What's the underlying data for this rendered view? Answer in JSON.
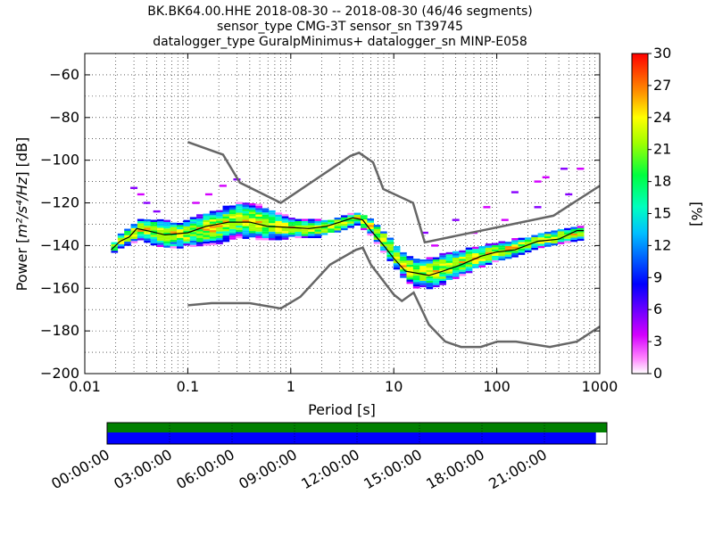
{
  "chart_data": {
    "type": "heatmap",
    "title_lines": [
      "BK.BK64.00.HHE   2018-08-30 -- 2018-08-30  (46/46 segments)",
      "sensor_type CMG-3T sensor_sn T39745",
      "datalogger_type GuralpMinimus+ datalogger_sn MINP-E058"
    ],
    "xlabel": "Period [s]",
    "ylabel_prefix": "Power [",
    "ylabel_math": "m²/s⁴/Hz",
    "ylabel_suffix": "] [dB]",
    "x_scale": "log",
    "xlim": [
      0.01,
      1000
    ],
    "ylim": [
      -200,
      -50
    ],
    "x_ticks": [
      {
        "value": 0.01,
        "label": "0.01"
      },
      {
        "value": 0.1,
        "label": "0.1"
      },
      {
        "value": 1,
        "label": "1"
      },
      {
        "value": 10,
        "label": "10"
      },
      {
        "value": 100,
        "label": "100"
      },
      {
        "value": 1000,
        "label": "1000"
      }
    ],
    "y_ticks": [
      {
        "value": -60,
        "label": "−60"
      },
      {
        "value": -80,
        "label": "−80"
      },
      {
        "value": -100,
        "label": "−100"
      },
      {
        "value": -120,
        "label": "−120"
      },
      {
        "value": -140,
        "label": "−140"
      },
      {
        "value": -160,
        "label": "−160"
      },
      {
        "value": -180,
        "label": "−180"
      },
      {
        "value": -200,
        "label": "−200"
      }
    ],
    "grid": true,
    "colorbar": {
      "label": "[%]",
      "range": [
        0,
        30
      ],
      "ticks": [
        {
          "value": 0,
          "label": "0"
        },
        {
          "value": 3,
          "label": "3"
        },
        {
          "value": 6,
          "label": "6"
        },
        {
          "value": 9,
          "label": "9"
        },
        {
          "value": 12,
          "label": "12"
        },
        {
          "value": 15,
          "label": "15"
        },
        {
          "value": 18,
          "label": "18"
        },
        {
          "value": 21,
          "label": "21"
        },
        {
          "value": 24,
          "label": "24"
        },
        {
          "value": 27,
          "label": "27"
        },
        {
          "value": 30,
          "label": "30"
        }
      ]
    },
    "nhnm": {
      "x": [
        0.1,
        0.17,
        0.4,
        0.8,
        1.24,
        2.4,
        4.3,
        5.0,
        6.0,
        10,
        12,
        15.6,
        21.9,
        31.6,
        45,
        70,
        101,
        154,
        328,
        600,
        1000
      ],
      "y": [
        -168,
        -167,
        -167,
        -169.5,
        -164,
        -149,
        -142,
        -141,
        -149,
        -163,
        -166,
        -162,
        -177,
        -185,
        -187.5,
        -187.5,
        -185,
        -185,
        -187.5,
        -185,
        -178
      ]
    },
    "nlnm": {
      "x": [
        0.1,
        0.22,
        0.32,
        0.8,
        3.8,
        4.6,
        6.3,
        7.9,
        15.4,
        20,
        354.8,
        1000
      ],
      "y": [
        -91.5,
        -97.4,
        -110.5,
        -120,
        -98,
        -96.5,
        -101,
        -113.5,
        -120,
        -138.5,
        -126,
        -112
      ]
    },
    "mode_line": {
      "x": [
        0.018,
        0.022,
        0.027,
        0.032,
        0.04,
        0.06,
        0.1,
        0.15,
        0.25,
        0.4,
        0.6,
        1.0,
        1.5,
        2.2,
        3.0,
        4.0,
        5.0,
        6.0,
        8.0,
        10,
        13,
        17,
        22,
        30,
        45,
        70,
        100,
        150,
        250,
        400,
        600,
        700
      ],
      "y": [
        -142,
        -138,
        -136,
        -132,
        -133,
        -135,
        -134,
        -131,
        -129,
        -129,
        -131,
        -131.5,
        -132,
        -131,
        -129,
        -127,
        -128,
        -133,
        -140,
        -146,
        -152,
        -153,
        -154,
        -152,
        -149,
        -145,
        -143,
        -142,
        -138,
        -137,
        -133,
        -133
      ]
    },
    "density_band": {
      "x": [
        0.018,
        0.022,
        0.028,
        0.035,
        0.05,
        0.08,
        0.12,
        0.2,
        0.3,
        0.5,
        0.8,
        1.2,
        2.0,
        3.0,
        4.5,
        6.0,
        8.0,
        10,
        13,
        17,
        22,
        30,
        45,
        70,
        100,
        150,
        250,
        400,
        700
      ],
      "center": [
        -142,
        -138,
        -135,
        -132,
        -134,
        -135,
        -133,
        -131,
        -128,
        -129,
        -131,
        -132,
        -132,
        -130,
        -127,
        -131,
        -138,
        -144,
        -150,
        -153,
        -153,
        -151,
        -148,
        -145,
        -143,
        -141,
        -138,
        -136,
        -134
      ],
      "half_width": [
        2,
        3,
        4,
        5,
        6,
        6,
        7,
        8,
        8,
        8,
        6,
        4,
        4,
        3,
        3,
        4,
        5,
        5,
        6,
        7,
        7,
        7,
        6,
        5,
        4,
        4,
        3,
        3,
        3
      ]
    },
    "scattered_segments": [
      {
        "x": [
          0.03,
          0.035,
          0.04,
          0.05
        ],
        "y": [
          -113,
          -116,
          -120,
          -124
        ]
      },
      {
        "x": [
          0.12,
          0.16,
          0.22,
          0.3
        ],
        "y": [
          -120,
          -116,
          -112,
          -109
        ]
      },
      {
        "x": [
          20,
          40,
          80,
          150,
          250
        ],
        "y": [
          -134,
          -128,
          -122,
          -115,
          -110
        ]
      },
      {
        "x": [
          25,
          60,
          120,
          250,
          500
        ],
        "y": [
          -140,
          -134,
          -128,
          -122,
          -116
        ]
      },
      {
        "x": [
          300,
          450,
          650
        ],
        "y": [
          -108,
          -104,
          -104
        ]
      }
    ]
  },
  "timeline": {
    "tick_labels": [
      "00:00:00",
      "03:00:00",
      "06:00:00",
      "09:00:00",
      "12:00:00",
      "15:00:00",
      "18:00:00",
      "21:00:00"
    ],
    "available_fraction": 1.0,
    "used_fraction": 0.978,
    "colors": {
      "available": "#008000",
      "used": "#0000ff"
    }
  }
}
